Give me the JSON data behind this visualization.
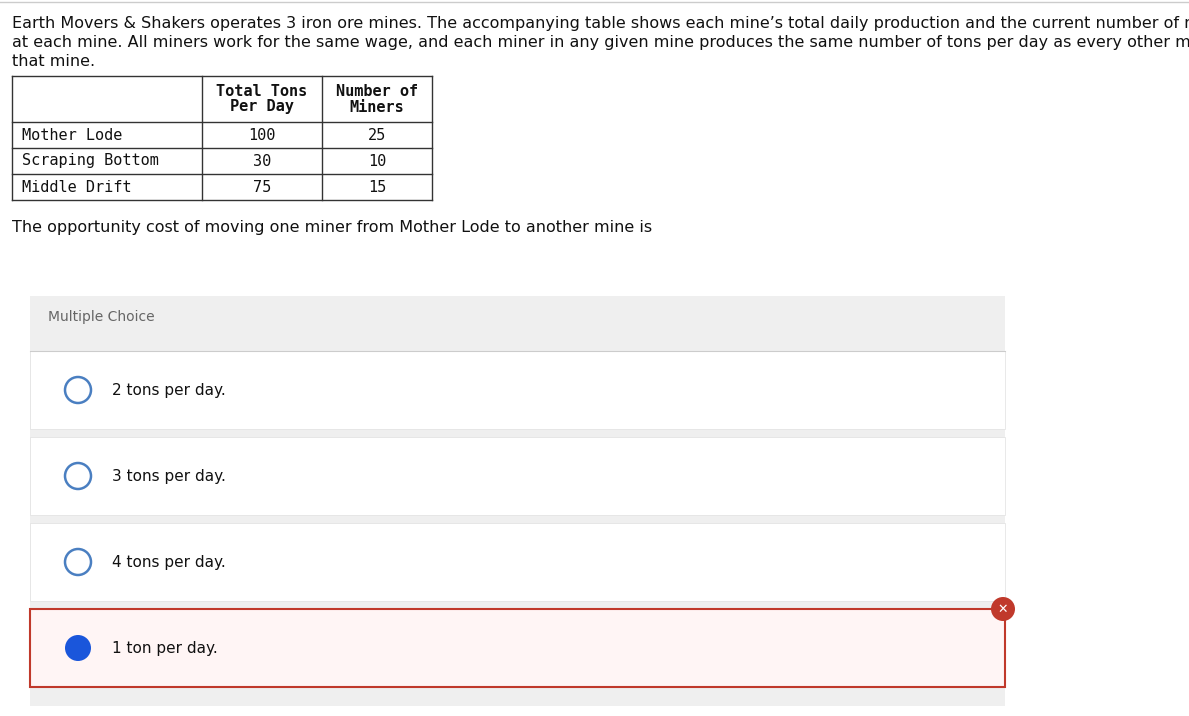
{
  "title_text_line1": "Earth Movers & Shakers operates 3 iron ore mines. The accompanying table shows each mine’s total daily production and the current number of miners",
  "title_text_line2": "at each mine. All miners work for the same wage, and each miner in any given mine produces the same number of tons per day as every other miner in",
  "title_text_line3": "that mine.",
  "table": {
    "col_headers_line1": [
      "Total Tons",
      "Number of"
    ],
    "col_headers_line2": [
      "Per Day",
      "Miners"
    ],
    "rows": [
      [
        "Mother Lode",
        "100",
        "25"
      ],
      [
        "Scraping Bottom",
        "30",
        "10"
      ],
      [
        "Middle Drift",
        "75",
        "15"
      ]
    ]
  },
  "question": "The opportunity cost of moving one miner from Mother Lode to another mine is",
  "mc_label": "Multiple Choice",
  "choices": [
    "2 tons per day.",
    "3 tons per day.",
    "4 tons per day.",
    "1 ton per day."
  ],
  "selected_index": 3,
  "bg_color": "#efefef",
  "white": "#ffffff",
  "selected_bg": "#fff5f5",
  "choice_bg": "#fafafa",
  "border_color": "#cccccc",
  "choice_border_color": "#e0e0e0",
  "selected_border": "#c0392b",
  "radio_selected_fill": "#1a56db",
  "radio_unselected_stroke": "#4a7fc1",
  "wrong_icon_color": "#c0392b",
  "text_color": "#111111",
  "mc_text_color": "#666666",
  "body_font_size": 11.5,
  "choice_font_size": 11,
  "mc_font_size": 10,
  "table_font_size": 11
}
